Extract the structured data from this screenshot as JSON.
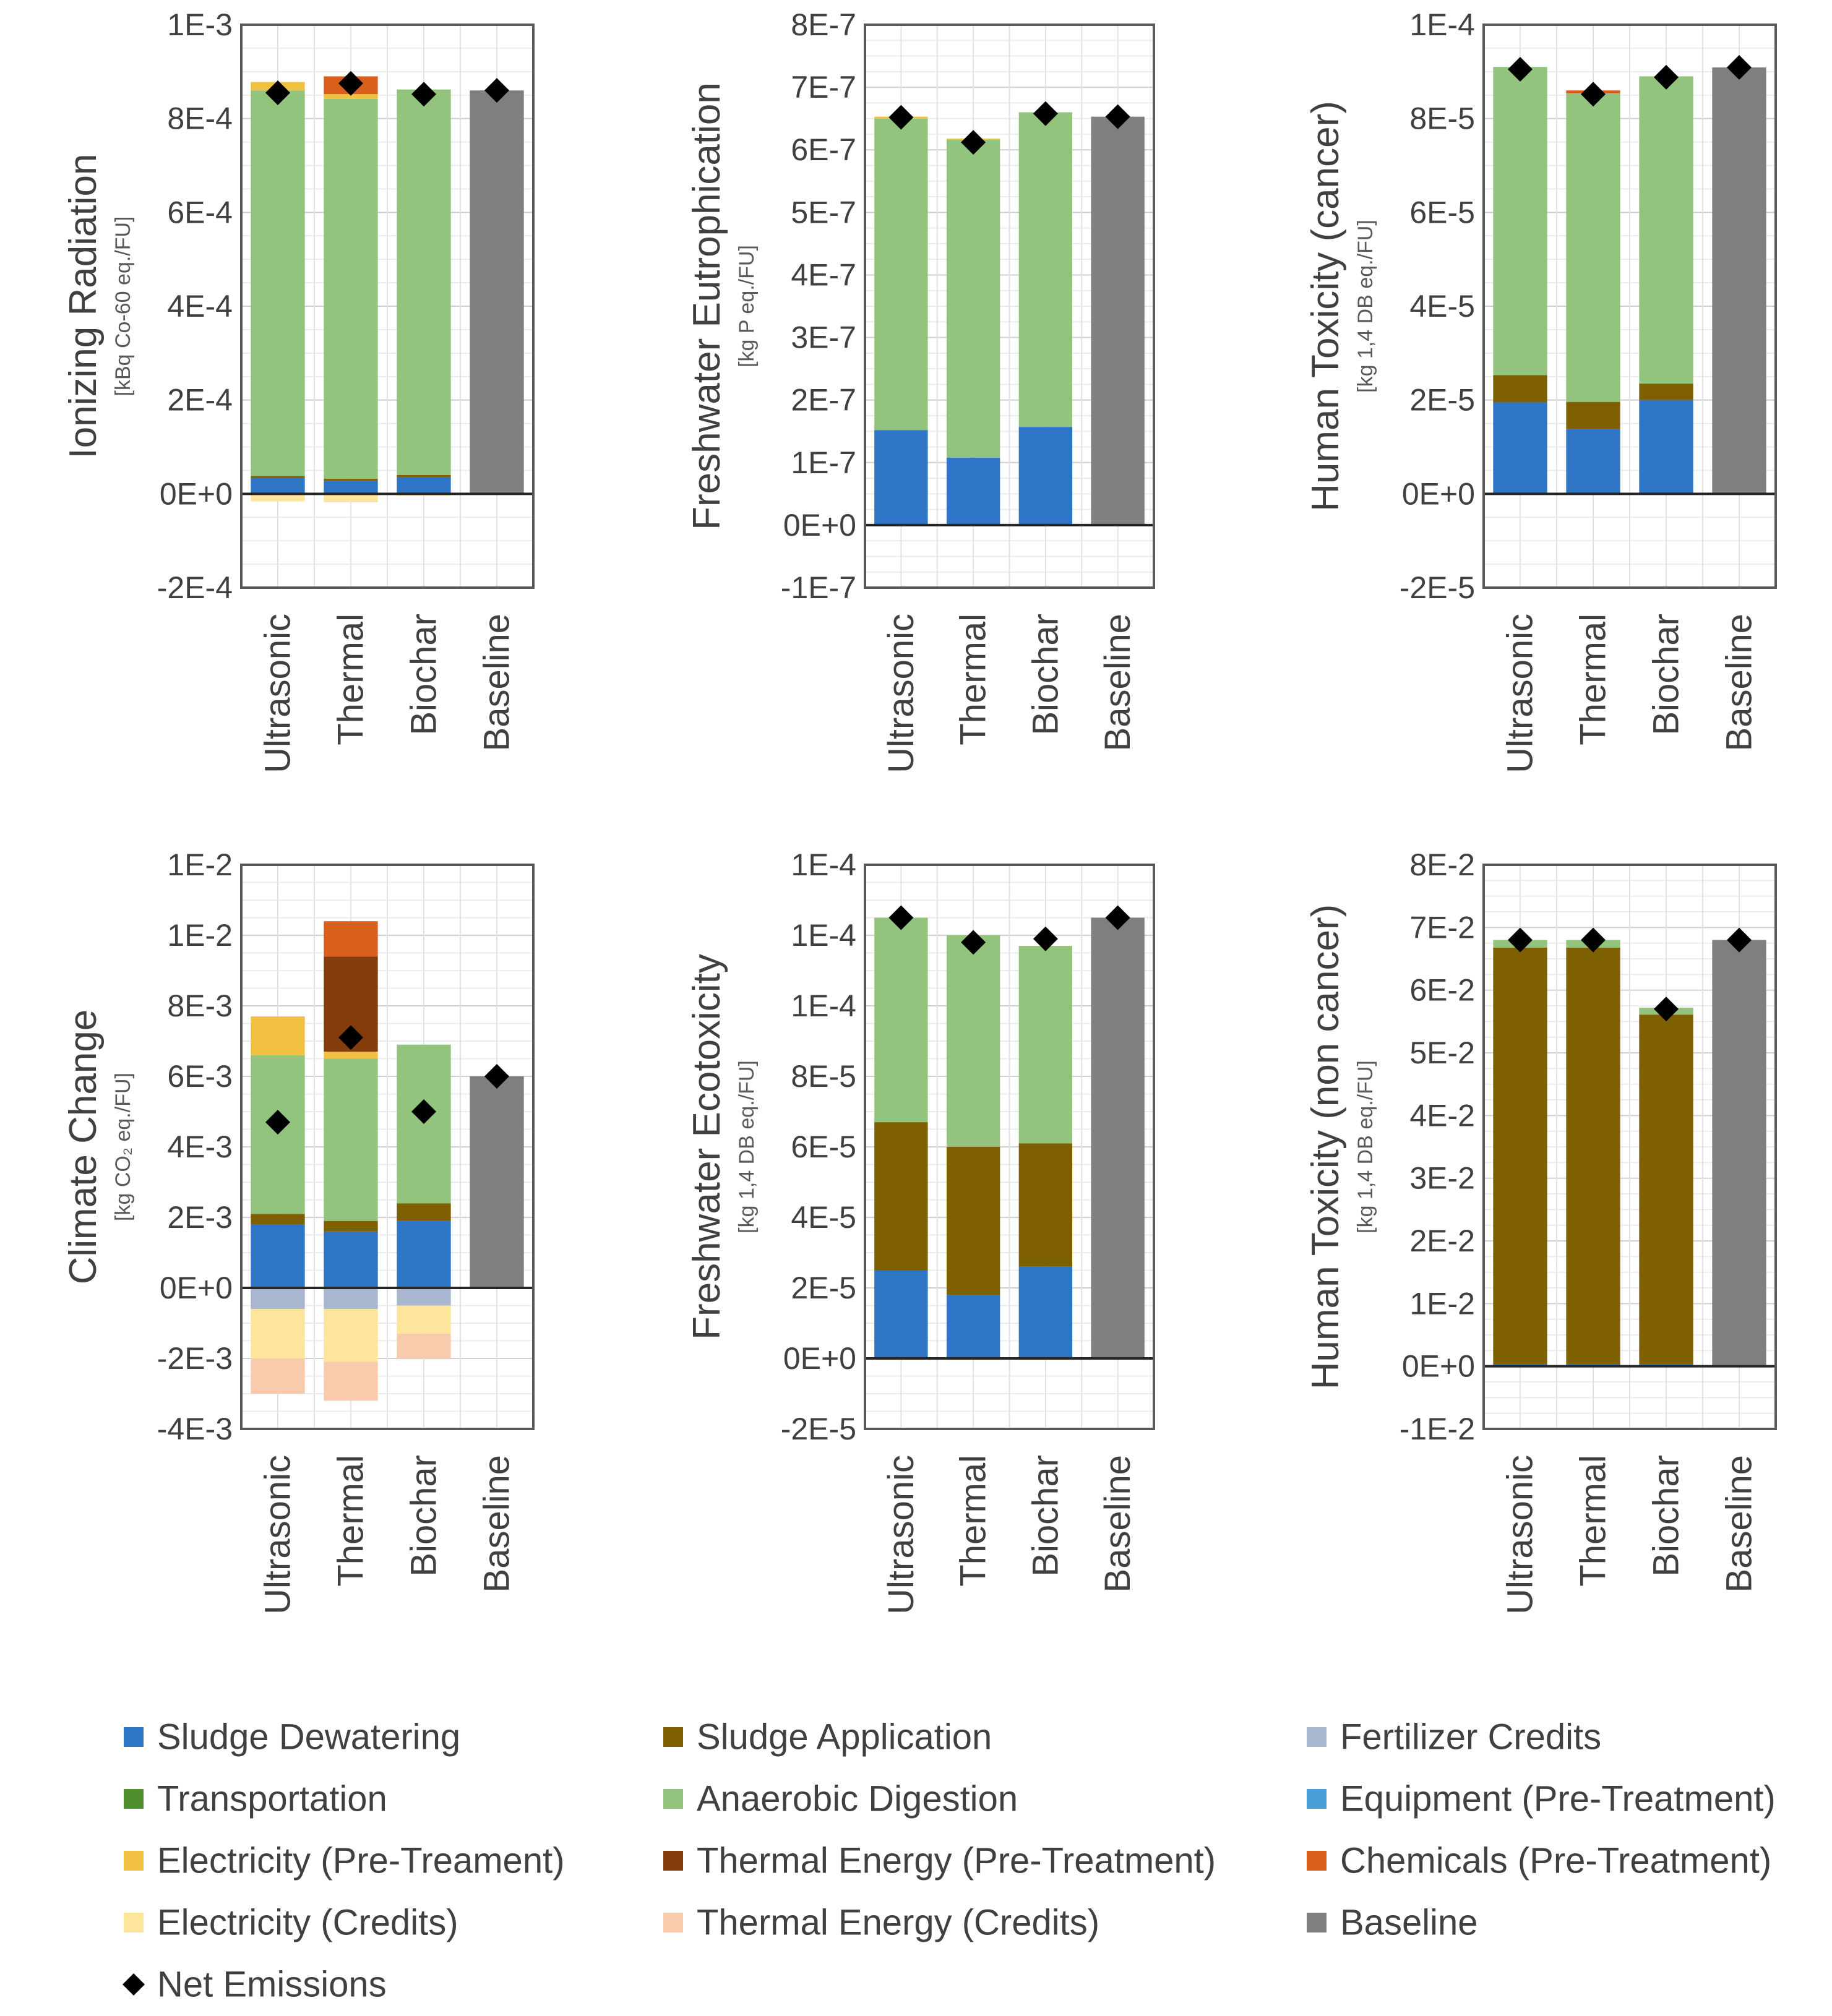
{
  "legend": {
    "items": [
      {
        "id": "sd",
        "label": "Sludge Dewatering",
        "color": "#2e75c6"
      },
      {
        "id": "sa",
        "label": "Sludge Application",
        "color": "#7f6000"
      },
      {
        "id": "fc",
        "label": "Fertilizer Credits",
        "color": "#a9b6d0"
      },
      {
        "id": "tr",
        "label": "Transportation",
        "color": "#4f8f2f"
      },
      {
        "id": "ad",
        "label": "Anaerobic Digestion",
        "color": "#93c47d"
      },
      {
        "id": "eq",
        "label": "Equipment (Pre-Treatment)",
        "color": "#4b9fd8"
      },
      {
        "id": "el",
        "label": "Electricity (Pre-Treament)",
        "color": "#f1c040"
      },
      {
        "id": "te",
        "label": "Thermal Energy (Pre-Treatment)",
        "color": "#843c0c"
      },
      {
        "id": "ch",
        "label": "Chemicals (Pre-Treatment)",
        "color": "#d9601c"
      },
      {
        "id": "ec",
        "label": "Electricity (Credits)",
        "color": "#fde59c"
      },
      {
        "id": "tc",
        "label": "Thermal Energy (Credits)",
        "color": "#f8cbad"
      },
      {
        "id": "bl",
        "label": "Baseline",
        "color": "#7f7f7f"
      }
    ],
    "net_label": "Net Emissions",
    "net_color": "#000000"
  },
  "chart_data": [
    {
      "type": "bar",
      "stacked": true,
      "ylabel": "Ionizing Radiation",
      "yunit": "[kBq Co-60 eq./FU]",
      "categories": [
        "Ultrasonic",
        "Thermal",
        "Biochar",
        "Baseline"
      ],
      "ylim": [
        -0.0002,
        0.001
      ],
      "yticks": [
        -0.0002,
        0,
        0.0002,
        0.0004,
        0.0006,
        0.0008,
        0.001
      ],
      "ytick_labels": [
        "-2E-4",
        "0E+0",
        "2E-4",
        "4E-4",
        "6E-4",
        "8E-4",
        "1E-3"
      ],
      "series": [
        {
          "id": "sd",
          "values": [
            3.4e-05,
            2.8e-05,
            3.6e-05,
            0
          ]
        },
        {
          "id": "sa",
          "values": [
            4e-06,
            4e-06,
            4e-06,
            0
          ]
        },
        {
          "id": "ad",
          "values": [
            0.000822,
            0.00081,
            0.000822,
            0
          ]
        },
        {
          "id": "el",
          "values": [
            1.8e-05,
            1e-05,
            0,
            0
          ]
        },
        {
          "id": "ch",
          "values": [
            0,
            3.8e-05,
            0,
            0
          ]
        },
        {
          "id": "bl",
          "values": [
            0,
            0,
            0,
            0.00086
          ]
        },
        {
          "id": "ec",
          "values": [
            -1.6e-05,
            -1.8e-05,
            -4e-06,
            0
          ]
        }
      ],
      "net": [
        0.000855,
        0.000875,
        0.000852,
        0.00086
      ],
      "grid": true
    },
    {
      "type": "bar",
      "stacked": true,
      "ylabel": "Freshwater Eutrophication",
      "yunit": "[kg P eq./FU]",
      "categories": [
        "Ultrasonic",
        "Thermal",
        "Biochar",
        "Baseline"
      ],
      "ylim": [
        -1e-07,
        8e-07
      ],
      "yticks": [
        -1e-07,
        0,
        1e-07,
        2e-07,
        3e-07,
        4e-07,
        5e-07,
        6e-07,
        7e-07,
        8e-07
      ],
      "ytick_labels": [
        "-1E-7",
        "0E+0",
        "1E-7",
        "2E-7",
        "3E-7",
        "4E-7",
        "5E-7",
        "6E-7",
        "7E-7",
        "8E-7"
      ],
      "series": [
        {
          "id": "sd",
          "values": [
            1.52e-07,
            1.08e-07,
            1.57e-07,
            0
          ]
        },
        {
          "id": "ad",
          "values": [
            4.98e-07,
            5.08e-07,
            5.03e-07,
            0
          ]
        },
        {
          "id": "el",
          "values": [
            3e-09,
            2e-09,
            0,
            0
          ]
        },
        {
          "id": "bl",
          "values": [
            0,
            0,
            0,
            6.53e-07
          ]
        }
      ],
      "net": [
        6.52e-07,
        6.12e-07,
        6.58e-07,
        6.53e-07
      ],
      "grid": true
    },
    {
      "type": "bar",
      "stacked": true,
      "ylabel": "Human Toxicity (cancer)",
      "yunit": "[kg 1,4 DB eq./FU]",
      "categories": [
        "Ultrasonic",
        "Thermal",
        "Biochar",
        "Baseline"
      ],
      "ylim": [
        -2e-05,
        0.0001
      ],
      "yticks": [
        -2e-05,
        0,
        2e-05,
        4e-05,
        6e-05,
        8e-05,
        0.0001
      ],
      "ytick_labels": [
        "-2E-5",
        "0E+0",
        "2E-5",
        "4E-5",
        "6E-5",
        "8E-5",
        "1E-4"
      ],
      "series": [
        {
          "id": "sd",
          "values": [
            1.95e-05,
            1.38e-05,
            2e-05,
            0
          ]
        },
        {
          "id": "sa",
          "values": [
            5.8e-06,
            5.8e-06,
            3.5e-06,
            0
          ]
        },
        {
          "id": "ad",
          "values": [
            6.57e-05,
            6.58e-05,
            6.55e-05,
            0
          ]
        },
        {
          "id": "ch",
          "values": [
            0,
            6e-07,
            0,
            0
          ]
        },
        {
          "id": "bl",
          "values": [
            0,
            0,
            0,
            9.09e-05
          ]
        }
      ],
      "net": [
        9.05e-05,
        8.52e-05,
        8.88e-05,
        9.09e-05
      ],
      "grid": true
    },
    {
      "type": "bar",
      "stacked": true,
      "ylabel": "Climate Change",
      "yunit": "[kg CO₂ eq./FU]",
      "categories": [
        "Ultrasonic",
        "Thermal",
        "Biochar",
        "Baseline"
      ],
      "ylim": [
        -0.004,
        0.012
      ],
      "yticks": [
        -0.004,
        -0.002,
        0,
        0.002,
        0.004,
        0.006,
        0.008,
        0.01,
        0.012
      ],
      "ytick_labels": [
        "-4E-3",
        "-2E-3",
        "0E+0",
        "2E-3",
        "4E-3",
        "6E-3",
        "8E-3",
        "1E-2",
        "1E-2"
      ],
      "series": [
        {
          "id": "sd",
          "values": [
            0.0018,
            0.0016,
            0.0019,
            0
          ]
        },
        {
          "id": "sa",
          "values": [
            0.0003,
            0.0003,
            0.0005,
            0
          ]
        },
        {
          "id": "ad",
          "values": [
            0.0045,
            0.0046,
            0.0045,
            0
          ]
        },
        {
          "id": "el",
          "values": [
            0.0011,
            0.0002,
            0,
            0
          ]
        },
        {
          "id": "te",
          "values": [
            0,
            0.0027,
            0,
            0
          ]
        },
        {
          "id": "ch",
          "values": [
            0,
            0.001,
            0,
            0
          ]
        },
        {
          "id": "bl",
          "values": [
            0,
            0,
            0,
            0.006
          ]
        },
        {
          "id": "fc",
          "values": [
            -0.0006,
            -0.0006,
            -0.0005,
            0
          ]
        },
        {
          "id": "ec",
          "values": [
            -0.0014,
            -0.0015,
            -0.0008,
            0
          ]
        },
        {
          "id": "tc",
          "values": [
            -0.001,
            -0.0011,
            -0.0007,
            0
          ]
        }
      ],
      "net": [
        0.0047,
        0.0071,
        0.005,
        0.006
      ],
      "grid": true
    },
    {
      "type": "bar",
      "stacked": true,
      "ylabel": "Freshwater Ecotoxicity",
      "yunit": "[kg 1,4 DB eq./FU]",
      "categories": [
        "Ultrasonic",
        "Thermal",
        "Biochar",
        "Baseline"
      ],
      "ylim": [
        -2e-05,
        0.00014
      ],
      "yticks": [
        -2e-05,
        0,
        2e-05,
        4e-05,
        6e-05,
        8e-05,
        0.0001,
        0.00012,
        0.00014
      ],
      "ytick_labels": [
        "-2E-5",
        "0E+0",
        "2E-5",
        "4E-5",
        "6E-5",
        "8E-5",
        "1E-4",
        "1E-4",
        "1E-4"
      ],
      "series": [
        {
          "id": "sd",
          "values": [
            2.5e-05,
            1.8e-05,
            2.6e-05,
            0
          ]
        },
        {
          "id": "sa",
          "values": [
            4.2e-05,
            4.2e-05,
            3.5e-05,
            0
          ]
        },
        {
          "id": "ad",
          "values": [
            5.8e-05,
            6e-05,
            5.6e-05,
            0
          ]
        },
        {
          "id": "bl",
          "values": [
            0,
            0,
            0,
            0.000125
          ]
        }
      ],
      "net": [
        0.000125,
        0.000118,
        0.000119,
        0.000125
      ],
      "grid": true
    },
    {
      "type": "bar",
      "stacked": true,
      "ylabel": "Human Toxicity (non cancer)",
      "yunit": "[kg 1,4 DB eq./FU]",
      "categories": [
        "Ultrasonic",
        "Thermal",
        "Biochar",
        "Baseline"
      ],
      "ylim": [
        -0.01,
        0.08
      ],
      "yticks": [
        -0.01,
        0,
        0.01,
        0.02,
        0.03,
        0.04,
        0.05,
        0.06,
        0.07,
        0.08
      ],
      "ytick_labels": [
        "-1E-2",
        "0E+0",
        "1E-2",
        "2E-2",
        "3E-2",
        "4E-2",
        "5E-2",
        "6E-2",
        "7E-2",
        "8E-2"
      ],
      "series": [
        {
          "id": "sd",
          "values": [
            0.0003,
            0.0003,
            0.0003,
            0
          ]
        },
        {
          "id": "sa",
          "values": [
            0.0665,
            0.0665,
            0.0558,
            0
          ]
        },
        {
          "id": "ad",
          "values": [
            0.0012,
            0.0012,
            0.0011,
            0
          ]
        },
        {
          "id": "bl",
          "values": [
            0,
            0,
            0,
            0.068
          ]
        }
      ],
      "net": [
        0.068,
        0.068,
        0.057,
        0.068
      ],
      "grid": true
    }
  ]
}
